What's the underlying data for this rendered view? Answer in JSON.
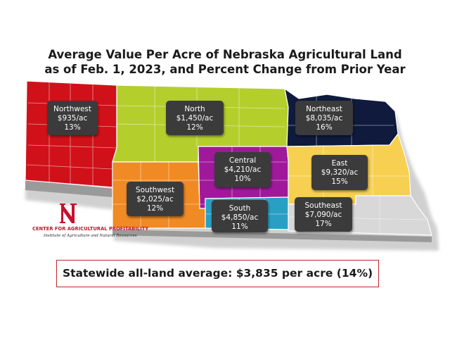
{
  "title_line1": "Average Value Per Acre of Nebraska Agricultural Land",
  "title_line2": "as of Feb. 1, 2023, and Percent Change from Prior Year",
  "regions": [
    {
      "id": "northwest",
      "name": "Northwest",
      "value": "$935/ac",
      "change": "13%",
      "color": "#d0111a"
    },
    {
      "id": "north",
      "name": "North",
      "value": "$1,450/ac",
      "change": "12%",
      "color": "#b4cf2c"
    },
    {
      "id": "northeast",
      "name": "Northeast",
      "value": "$8,035/ac",
      "change": "16%",
      "color": "#0f1a3d"
    },
    {
      "id": "central",
      "name": "Central",
      "value": "$4,210/ac",
      "change": "10%",
      "color": "#a0199a"
    },
    {
      "id": "east",
      "name": "East",
      "value": "$9,320/ac",
      "change": "15%",
      "color": "#f7d052"
    },
    {
      "id": "southwest",
      "name": "Southwest",
      "value": "$2,025/ac",
      "change": "12%",
      "color": "#f08a24"
    },
    {
      "id": "south",
      "name": "South",
      "value": "$4,850/ac",
      "change": "11%",
      "color": "#2a9fc4"
    },
    {
      "id": "southeast",
      "name": "Southeast",
      "value": "$7,090/ac",
      "change": "17%",
      "color": "#d8d8d8"
    }
  ],
  "logo": {
    "letter": "N",
    "line1": "CENTER FOR AGRICULTURAL PROFITABILITY",
    "line2": "Institute of Agriculture and Natural Resources",
    "color": "#c8102e"
  },
  "footer": "Statewide all-land average: $3,835 per acre (14%)"
}
